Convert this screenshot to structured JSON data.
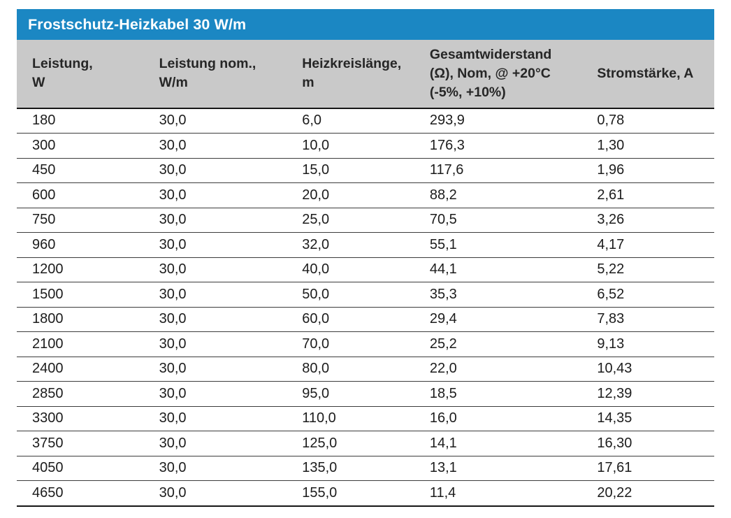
{
  "table": {
    "title": "Frostschutz-Heizkabel 30 W/m",
    "columns": [
      {
        "id": "leistung",
        "label": "Leistung,\nW"
      },
      {
        "id": "leistung-nom",
        "label": "Leistung nom.,\nW/m"
      },
      {
        "id": "heizkreislaenge",
        "label": "Heizkreislänge,\nm"
      },
      {
        "id": "gesamtwiderstand",
        "label": "Gesamtwiderstand\n(Ω), Nom, @ +20°C\n(-5%, +10%)"
      },
      {
        "id": "stromstaerke",
        "label": "Stromstärke, A"
      }
    ],
    "rows": [
      [
        "180",
        "30,0",
        "6,0",
        "293,9",
        "0,78"
      ],
      [
        "300",
        "30,0",
        "10,0",
        "176,3",
        "1,30"
      ],
      [
        "450",
        "30,0",
        "15,0",
        "117,6",
        "1,96"
      ],
      [
        "600",
        "30,0",
        "20,0",
        "88,2",
        "2,61"
      ],
      [
        "750",
        "30,0",
        "25,0",
        "70,5",
        "3,26"
      ],
      [
        "960",
        "30,0",
        "32,0",
        "55,1",
        "4,17"
      ],
      [
        "1200",
        "30,0",
        "40,0",
        "44,1",
        "5,22"
      ],
      [
        "1500",
        "30,0",
        "50,0",
        "35,3",
        "6,52"
      ],
      [
        "1800",
        "30,0",
        "60,0",
        "29,4",
        "7,83"
      ],
      [
        "2100",
        "30,0",
        "70,0",
        "25,2",
        "9,13"
      ],
      [
        "2400",
        "30,0",
        "80,0",
        "22,0",
        "10,43"
      ],
      [
        "2850",
        "30,0",
        "95,0",
        "18,5",
        "12,39"
      ],
      [
        "3300",
        "30,0",
        "110,0",
        "16,0",
        "14,35"
      ],
      [
        "3750",
        "30,0",
        "125,0",
        "14,1",
        "16,30"
      ],
      [
        "4050",
        "30,0",
        "135,0",
        "13,1",
        "17,61"
      ],
      [
        "4650",
        "30,0",
        "155,0",
        "11,4",
        "20,22"
      ]
    ],
    "colors": {
      "title_bar": "#1b87c3",
      "header_bg": "#c9c9c9",
      "cell_text": "#1c1c1c"
    }
  }
}
